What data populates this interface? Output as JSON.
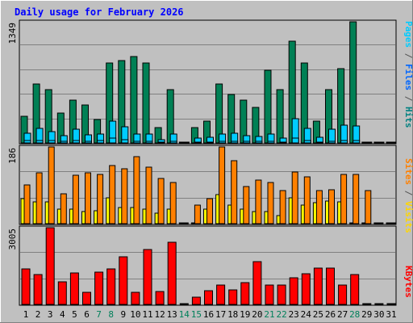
{
  "chart_data": {
    "type": "bar",
    "title": "Daily usage for February 2026",
    "days": [
      "1",
      "2",
      "3",
      "4",
      "5",
      "6",
      "7",
      "8",
      "9",
      "10",
      "11",
      "12",
      "13",
      "14",
      "15",
      "16",
      "17",
      "18",
      "19",
      "20",
      "21",
      "22",
      "23",
      "24",
      "25",
      "26",
      "27",
      "28",
      "29",
      "30",
      "31"
    ],
    "weekend_days": [
      "7",
      "8",
      "14",
      "15",
      "21",
      "22",
      "28"
    ],
    "panels": [
      {
        "id": "hits",
        "ylabel_parts": [
          {
            "text": "Pages",
            "color": "#00ccff"
          },
          {
            "text": " / ",
            "color": "#555555"
          },
          {
            "text": "Files",
            "color": "#0066ff"
          },
          {
            "text": " / ",
            "color": "#555555"
          },
          {
            "text": "Hits",
            "color": "#008080"
          }
        ],
        "ymax_label": "1349",
        "ymax": 1349,
        "series": [
          {
            "name": "Hits",
            "color": "#008055",
            "values": [
              300,
              660,
              590,
              330,
              480,
              420,
              260,
              890,
              920,
              960,
              890,
              170,
              590,
              0,
              170,
              240,
              660,
              540,
              480,
              400,
              810,
              590,
              1130,
              890,
              240,
              590,
              830,
              1349,
              0,
              0,
              0
            ]
          },
          {
            "name": "Files",
            "color": "#00ccff",
            "values": [
              110,
              160,
              130,
              80,
              150,
              90,
              100,
              240,
              180,
              100,
              100,
              40,
              100,
              0,
              50,
              60,
              100,
              110,
              80,
              70,
              100,
              50,
              270,
              160,
              60,
              150,
              200,
              190,
              0,
              0,
              0
            ]
          },
          {
            "name": "Pages",
            "color": "#00ccff",
            "values": [
              30,
              30,
              30,
              20,
              30,
              20,
              30,
              50,
              40,
              20,
              20,
              10,
              20,
              0,
              10,
              10,
              20,
              20,
              20,
              15,
              20,
              10,
              50,
              30,
              10,
              20,
              30,
              30,
              0,
              0,
              0
            ]
          }
        ]
      },
      {
        "id": "visits",
        "ylabel_parts": [
          {
            "text": "Sites",
            "color": "#ff8000"
          },
          {
            "text": " / ",
            "color": "#555555"
          },
          {
            "text": "Visits",
            "color": "#ffd700"
          }
        ],
        "ymax_label": "186",
        "ymax": 186,
        "series": [
          {
            "name": "Visits",
            "color": "#ffff00",
            "values": [
              60,
              52,
              52,
              35,
              35,
              30,
              32,
              62,
              40,
              40,
              35,
              25,
              35,
              2,
              2,
              35,
              70,
              45,
              35,
              30,
              30,
              20,
              62,
              45,
              50,
              55,
              52,
              0,
              0,
              0,
              0
            ]
          },
          {
            "name": "Sites",
            "color": "#ff8000",
            "values": [
              93,
              123,
              186,
              73,
              118,
              123,
              120,
              140,
              133,
              163,
              138,
              110,
              100,
              2,
              45,
              60,
              186,
              153,
              90,
              105,
              100,
              80,
              126,
              113,
              80,
              83,
              120,
              120,
              81,
              0,
              0
            ]
          }
        ]
      },
      {
        "id": "kbytes",
        "ylabel_parts": [
          {
            "text": "KBytes",
            "color": "#ff0000"
          }
        ],
        "ymax_label": "3005",
        "ymax": 3005,
        "series": [
          {
            "name": "KBytes",
            "color": "#ff0000",
            "values": [
              1390,
              1160,
              3005,
              880,
              1220,
              480,
              1260,
              1380,
              1860,
              490,
              2160,
              500,
              2450,
              0,
              290,
              550,
              760,
              580,
              860,
              1670,
              750,
              760,
              1030,
              1190,
              1410,
              1430,
              750,
              1160,
              0,
              0,
              0
            ]
          }
        ]
      }
    ]
  }
}
